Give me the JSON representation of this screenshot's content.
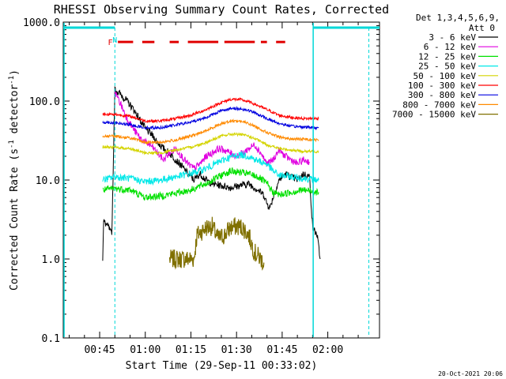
{
  "chart_data": {
    "type": "line",
    "title": "RHESSI Observing Summary Count Rates, Corrected",
    "xlabel": "Start Time (29-Sep-11 00:33:02)",
    "ylabel_main": "Corrected Count Rate (s",
    "ylabel_sup": "-1",
    "ylabel_tail": " detector",
    "ylabel_close": ")",
    "y_scale": "log",
    "ylim": [
      0.1,
      1000.0
    ],
    "xlim_minutes": [
      33.03,
      137.0
    ],
    "y_ticks": [
      {
        "v": 1000,
        "label": "1000.0"
      },
      {
        "v": 100,
        "label": "100.0"
      },
      {
        "v": 10,
        "label": "10.0"
      },
      {
        "v": 1,
        "label": "1.0"
      },
      {
        "v": 0.1,
        "label": "0.1"
      }
    ],
    "x_ticks": [
      {
        "m": 45,
        "label": "00:45"
      },
      {
        "m": 60,
        "label": "01:00"
      },
      {
        "m": 75,
        "label": "01:15"
      },
      {
        "m": 90,
        "label": "01:30"
      },
      {
        "m": 105,
        "label": "01:45"
      },
      {
        "m": 120,
        "label": "02:00"
      }
    ],
    "legend_header": [
      "Det 1,3,4,5,6,9,",
      "Att 0"
    ],
    "legend_placement": "right",
    "series": [
      {
        "name": "3 - 6 keV",
        "color": "#000000",
        "points": [
          [
            46,
            1.0
          ],
          [
            46.3,
            3.0
          ],
          [
            48,
            2.5
          ],
          [
            49,
            2.0
          ],
          [
            50,
            140
          ],
          [
            52,
            120
          ],
          [
            54,
            100
          ],
          [
            56,
            80
          ],
          [
            58,
            60
          ],
          [
            60,
            45
          ],
          [
            62,
            38
          ],
          [
            64,
            30
          ],
          [
            66,
            25
          ],
          [
            68,
            22
          ],
          [
            70,
            18
          ],
          [
            72,
            15
          ],
          [
            74,
            12
          ],
          [
            76,
            10
          ],
          [
            78,
            12
          ],
          [
            80,
            10
          ],
          [
            82,
            9
          ],
          [
            85,
            8.5
          ],
          [
            88,
            8.0
          ],
          [
            91,
            8.5
          ],
          [
            94,
            9.0
          ],
          [
            97,
            7.5
          ],
          [
            99,
            6.5
          ],
          [
            100,
            5.0
          ],
          [
            101,
            4.5
          ],
          [
            102,
            6.0
          ],
          [
            104,
            10
          ],
          [
            106,
            12
          ],
          [
            108,
            11
          ],
          [
            110,
            10
          ],
          [
            112,
            12
          ],
          [
            114,
            11
          ],
          [
            115,
            2.5
          ],
          [
            116.5,
            2.0
          ],
          [
            117.5,
            1.0
          ]
        ]
      },
      {
        "name": "6 - 12 keV",
        "color": "#e000e0",
        "points": [
          [
            50,
            130
          ],
          [
            52,
            90
          ],
          [
            54,
            60
          ],
          [
            56,
            45
          ],
          [
            58,
            35
          ],
          [
            60,
            30
          ],
          [
            62,
            27
          ],
          [
            64,
            22
          ],
          [
            66,
            18
          ],
          [
            68,
            22
          ],
          [
            70,
            25
          ],
          [
            72,
            20
          ],
          [
            74,
            16
          ],
          [
            76,
            14
          ],
          [
            78,
            16
          ],
          [
            80,
            20
          ],
          [
            82,
            22
          ],
          [
            84,
            25
          ],
          [
            86,
            24
          ],
          [
            88,
            22
          ],
          [
            90,
            20
          ],
          [
            92,
            22
          ],
          [
            94,
            25
          ],
          [
            96,
            28
          ],
          [
            98,
            22
          ],
          [
            100,
            16
          ],
          [
            102,
            18
          ],
          [
            104,
            24
          ],
          [
            106,
            20
          ],
          [
            108,
            18
          ],
          [
            110,
            16
          ],
          [
            112,
            18
          ],
          [
            114,
            17
          ]
        ]
      },
      {
        "name": "12 - 25 keV",
        "color": "#00e000",
        "points": [
          [
            46,
            7.5
          ],
          [
            50,
            7.8
          ],
          [
            55,
            7.5
          ],
          [
            60,
            6.0
          ],
          [
            65,
            6.3
          ],
          [
            70,
            6.8
          ],
          [
            75,
            7.5
          ],
          [
            80,
            9.0
          ],
          [
            85,
            11.5
          ],
          [
            88,
            13.0
          ],
          [
            91,
            12.5
          ],
          [
            94,
            12.0
          ],
          [
            97,
            11.0
          ],
          [
            100,
            9.0
          ],
          [
            102,
            7.0
          ],
          [
            104,
            6.5
          ],
          [
            108,
            7.0
          ],
          [
            112,
            7.5
          ],
          [
            117,
            7.0
          ]
        ]
      },
      {
        "name": "25 - 50 keV",
        "color": "#00e8e8",
        "points": [
          [
            46,
            10.0
          ],
          [
            50,
            11.0
          ],
          [
            55,
            10.5
          ],
          [
            60,
            9.5
          ],
          [
            65,
            10.0
          ],
          [
            70,
            11.0
          ],
          [
            75,
            12.0
          ],
          [
            80,
            14.0
          ],
          [
            85,
            17.5
          ],
          [
            88,
            19.5
          ],
          [
            91,
            21.0
          ],
          [
            94,
            20.0
          ],
          [
            97,
            17.5
          ],
          [
            100,
            16.0
          ],
          [
            102,
            13.0
          ],
          [
            104,
            11.5
          ],
          [
            108,
            11.0
          ],
          [
            112,
            10.5
          ],
          [
            117,
            10.0
          ]
        ]
      },
      {
        "name": "50 - 100 keV",
        "color": "#d4d400",
        "points": [
          [
            46,
            26
          ],
          [
            50,
            26
          ],
          [
            55,
            25
          ],
          [
            60,
            22
          ],
          [
            65,
            22
          ],
          [
            70,
            24
          ],
          [
            75,
            26
          ],
          [
            80,
            30
          ],
          [
            85,
            36
          ],
          [
            88,
            38
          ],
          [
            91,
            38
          ],
          [
            94,
            36
          ],
          [
            97,
            32
          ],
          [
            100,
            28
          ],
          [
            104,
            25
          ],
          [
            108,
            24
          ],
          [
            112,
            23
          ],
          [
            117,
            23
          ]
        ]
      },
      {
        "name": "100 - 300 keV",
        "color": "#ff0000",
        "points": [
          [
            46,
            68
          ],
          [
            50,
            68
          ],
          [
            55,
            64
          ],
          [
            60,
            56
          ],
          [
            65,
            56
          ],
          [
            70,
            60
          ],
          [
            75,
            66
          ],
          [
            80,
            78
          ],
          [
            85,
            96
          ],
          [
            88,
            105
          ],
          [
            91,
            105
          ],
          [
            94,
            98
          ],
          [
            97,
            88
          ],
          [
            100,
            78
          ],
          [
            104,
            66
          ],
          [
            108,
            62
          ],
          [
            112,
            60
          ],
          [
            117,
            60
          ]
        ]
      },
      {
        "name": "300 - 800 keV",
        "color": "#0000e0",
        "points": [
          [
            46,
            54
          ],
          [
            50,
            53
          ],
          [
            55,
            50
          ],
          [
            60,
            46
          ],
          [
            65,
            46
          ],
          [
            70,
            50
          ],
          [
            75,
            54
          ],
          [
            80,
            62
          ],
          [
            85,
            76
          ],
          [
            88,
            80
          ],
          [
            91,
            80
          ],
          [
            94,
            76
          ],
          [
            97,
            68
          ],
          [
            100,
            60
          ],
          [
            104,
            52
          ],
          [
            108,
            48
          ],
          [
            112,
            47
          ],
          [
            117,
            46
          ]
        ]
      },
      {
        "name": "800 - 7000 keV",
        "color": "#ff8a00",
        "points": [
          [
            46,
            36
          ],
          [
            50,
            36
          ],
          [
            55,
            34
          ],
          [
            60,
            30
          ],
          [
            65,
            30
          ],
          [
            70,
            32
          ],
          [
            75,
            36
          ],
          [
            80,
            42
          ],
          [
            85,
            52
          ],
          [
            88,
            56
          ],
          [
            91,
            56
          ],
          [
            94,
            52
          ],
          [
            97,
            46
          ],
          [
            100,
            40
          ],
          [
            104,
            35
          ],
          [
            108,
            33
          ],
          [
            112,
            33
          ],
          [
            117,
            32
          ]
        ]
      },
      {
        "name": "7000 - 15000 keV",
        "color": "#807000",
        "points": [
          [
            68,
            1.0
          ],
          [
            73,
            1.0
          ],
          [
            76,
            1.0
          ],
          [
            77,
            2.0
          ],
          [
            80,
            2.5
          ],
          [
            82,
            2.6
          ],
          [
            84,
            1.8
          ],
          [
            86,
            2.0
          ],
          [
            88,
            2.5
          ],
          [
            90,
            2.6
          ],
          [
            92,
            2.5
          ],
          [
            94,
            2.0
          ],
          [
            96,
            1.2
          ],
          [
            98,
            1.0
          ],
          [
            99,
            0.9
          ]
        ]
      }
    ],
    "markers": [
      {
        "label": "F",
        "color": "#e00000",
        "minute": 48.5,
        "level": 560
      },
      {
        "label": "N",
        "color": "#00d8d8",
        "minute": 50.0,
        "level": 600
      }
    ],
    "flare_intervals": [
      [
        51,
        56
      ],
      [
        59,
        63
      ],
      [
        68,
        71
      ],
      [
        74,
        84
      ],
      [
        86,
        96
      ],
      [
        98,
        100
      ],
      [
        103,
        106
      ]
    ],
    "flare_level": 560,
    "night_intervals": [
      [
        33.03,
        50.0
      ],
      [
        115.2,
        137.0
      ]
    ],
    "night_level": 850,
    "orbit_boundaries_solid": [
      33.3,
      115.2
    ],
    "orbit_boundaries_dashed": [
      50.0,
      133.5
    ],
    "footer_date": "20-Oct-2021 20:06"
  }
}
